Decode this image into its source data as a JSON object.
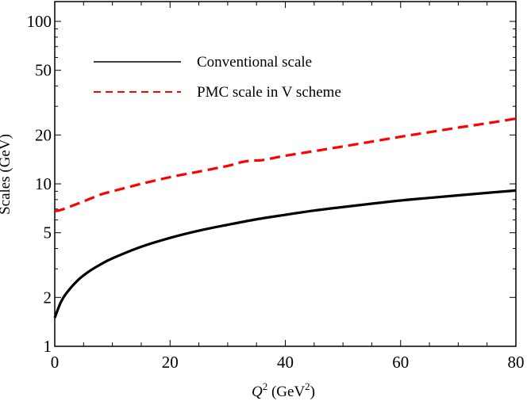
{
  "chart_data": {
    "type": "line",
    "title": "",
    "xlabel": "Q^2 (GeV^2)",
    "xlabel_parts": {
      "var": "Q",
      "sup": "2",
      "unit_open": " (GeV",
      "unit_sup": "2",
      "unit_close": ")"
    },
    "ylabel": "Scales (GeV)",
    "xlim": [
      0,
      80
    ],
    "ylim": [
      1,
      130
    ],
    "yscale": "log",
    "grid": false,
    "legend_position": "upper left",
    "x_ticks": [
      0,
      20,
      40,
      60,
      80
    ],
    "x_tick_labels": [
      "0",
      "20",
      "40",
      "60",
      "80"
    ],
    "y_ticks": [
      1,
      2,
      5,
      10,
      20,
      50,
      100
    ],
    "y_tick_labels": [
      "1",
      "2",
      "5",
      "10",
      "20",
      "50",
      "100"
    ],
    "series": [
      {
        "name": "Conventional scale",
        "color": "#000000",
        "style": "solid",
        "x": [
          0,
          1,
          2,
          4,
          6,
          8,
          10,
          15,
          20,
          25,
          30,
          35,
          40,
          45,
          50,
          55,
          60,
          65,
          70,
          75,
          80
        ],
        "values": [
          1.5,
          1.85,
          2.12,
          2.55,
          2.9,
          3.2,
          3.48,
          4.1,
          4.65,
          5.15,
          5.6,
          6.05,
          6.45,
          6.85,
          7.2,
          7.55,
          7.9,
          8.2,
          8.5,
          8.8,
          9.1
        ]
      },
      {
        "name": "PMC scale in V scheme",
        "color": "#ff0000",
        "style": "dashed",
        "x": [
          0,
          1,
          2,
          5,
          8,
          10,
          15,
          20,
          25,
          30,
          32,
          34,
          36,
          40,
          45,
          50,
          55,
          60,
          65,
          70,
          75,
          80
        ],
        "values": [
          6.8,
          6.9,
          7.1,
          7.8,
          8.6,
          9.0,
          10.0,
          11.0,
          11.9,
          12.9,
          13.5,
          13.9,
          14.0,
          14.9,
          15.9,
          17.0,
          18.2,
          19.5,
          20.8,
          22.2,
          23.6,
          25.2
        ]
      }
    ]
  }
}
